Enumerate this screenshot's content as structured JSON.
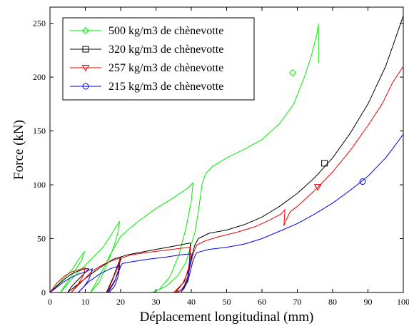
{
  "chart_data": {
    "type": "line",
    "title": "",
    "xlabel": "Déplacement longitudinal (mm)",
    "ylabel": "Force (kN)",
    "xlim": [
      0,
      100
    ],
    "ylim": [
      0,
      265
    ],
    "xticks": [
      0,
      10,
      20,
      30,
      40,
      50,
      60,
      70,
      80,
      90,
      100
    ],
    "yticks": [
      0,
      50,
      100,
      150,
      200,
      250
    ],
    "grid": false,
    "legend_position": "top-left",
    "series": [
      {
        "name": "500 kg/m3 de chènevotte",
        "color": "#00ee00",
        "marker": "diamond",
        "marker_point": [
          68.7,
          204
        ],
        "segments": [
          [
            [
              0,
              0
            ],
            [
              3,
              10
            ],
            [
              6,
              20
            ],
            [
              8,
              30
            ],
            [
              9.8,
              38
            ],
            [
              9,
              30
            ],
            [
              7,
              20
            ],
            [
              5,
              10
            ],
            [
              3.5,
              3
            ],
            [
              3,
              0
            ]
          ],
          [
            [
              3,
              0
            ],
            [
              6,
              12
            ],
            [
              9,
              22
            ],
            [
              12,
              32
            ],
            [
              15,
              42
            ],
            [
              17,
              52
            ],
            [
              18.5,
              60
            ],
            [
              19.7,
              66
            ],
            [
              19.2,
              55
            ],
            [
              18,
              42
            ],
            [
              16,
              25
            ],
            [
              14,
              10
            ],
            [
              12,
              2
            ],
            [
              11.5,
              0
            ]
          ],
          [
            [
              11.5,
              0
            ],
            [
              14,
              15
            ],
            [
              17,
              35
            ],
            [
              20,
              52
            ],
            [
              22,
              58
            ],
            [
              25,
              66
            ],
            [
              30,
              78
            ],
            [
              35,
              88
            ],
            [
              39,
              97
            ],
            [
              40.5,
              102
            ],
            [
              40,
              85
            ],
            [
              38.5,
              60
            ],
            [
              36.5,
              35
            ],
            [
              34,
              15
            ],
            [
              31,
              3
            ],
            [
              29,
              0
            ]
          ],
          [
            [
              29,
              0
            ],
            [
              33,
              6
            ],
            [
              36,
              15
            ],
            [
              38.5,
              28
            ],
            [
              40,
              45
            ],
            [
              41,
              55
            ],
            [
              42,
              75
            ],
            [
              43,
              100
            ],
            [
              44,
              110
            ],
            [
              46,
              117
            ],
            [
              50,
              125
            ],
            [
              55,
              133
            ],
            [
              60,
              142
            ],
            [
              65,
              157
            ],
            [
              69,
              175
            ],
            [
              72,
              200
            ],
            [
              74,
              220
            ],
            [
              75.6,
              241
            ],
            [
              76,
              249
            ],
            [
              76,
              213
            ]
          ]
        ]
      },
      {
        "name": "320 kg/m3 de chènevotte",
        "color": "#000000",
        "marker": "square",
        "marker_point": [
          77.7,
          120
        ],
        "segments": [
          [
            [
              0,
              0
            ],
            [
              2,
              6
            ],
            [
              4,
              12
            ],
            [
              6,
              17
            ],
            [
              8,
              20
            ],
            [
              10,
              22
            ],
            [
              11,
              22
            ],
            [
              8,
              12
            ],
            [
              6,
              5
            ],
            [
              5,
              0
            ]
          ],
          [
            [
              5,
              0
            ],
            [
              8,
              8
            ],
            [
              12,
              18
            ],
            [
              15,
              25
            ],
            [
              18,
              31
            ],
            [
              20,
              33
            ],
            [
              19.5,
              22
            ],
            [
              18.5,
              12
            ],
            [
              17,
              4
            ],
            [
              16,
              0
            ]
          ],
          [
            [
              16,
              0
            ],
            [
              18,
              15
            ],
            [
              19.5,
              28
            ],
            [
              20,
              33
            ],
            [
              22,
              35
            ],
            [
              25,
              37
            ],
            [
              30,
              40
            ],
            [
              35,
              43
            ],
            [
              39.7,
              46
            ],
            [
              39.5,
              30
            ],
            [
              39,
              15
            ],
            [
              38,
              6
            ],
            [
              37,
              2
            ],
            [
              35.5,
              0
            ]
          ],
          [
            [
              35.5,
              0
            ],
            [
              38,
              10
            ],
            [
              39.5,
              25
            ],
            [
              40.5,
              38
            ],
            [
              41,
              44
            ],
            [
              42,
              50
            ],
            [
              45,
              55
            ],
            [
              50,
              58
            ],
            [
              55,
              63
            ],
            [
              60,
              70
            ],
            [
              65,
              80
            ],
            [
              70,
              92
            ],
            [
              75,
              107
            ],
            [
              80,
              125
            ],
            [
              85,
              148
            ],
            [
              90,
              175
            ],
            [
              95,
              210
            ],
            [
              98,
              238
            ],
            [
              100,
              257
            ]
          ]
        ]
      },
      {
        "name": "257 kg/m3 de chènevotte",
        "color": "#ee0000",
        "marker": "triangle-down",
        "marker_point": [
          75.8,
          98
        ],
        "segments": [
          [
            [
              0,
              0
            ],
            [
              2,
              9
            ],
            [
              4,
              15
            ],
            [
              6,
              19
            ],
            [
              8,
              21
            ],
            [
              10,
              23
            ],
            [
              9.5,
              16
            ],
            [
              8,
              8
            ],
            [
              6.5,
              2
            ],
            [
              6,
              0
            ]
          ],
          [
            [
              6,
              0
            ],
            [
              9,
              10
            ],
            [
              12,
              20
            ],
            [
              15,
              26
            ],
            [
              18,
              30
            ],
            [
              19.8,
              32
            ],
            [
              19.3,
              20
            ],
            [
              18.3,
              10
            ],
            [
              17,
              3
            ],
            [
              16.2,
              0
            ]
          ],
          [
            [
              16.2,
              0
            ],
            [
              18,
              14
            ],
            [
              19.5,
              26
            ],
            [
              20.3,
              32
            ],
            [
              23,
              35
            ],
            [
              27,
              37
            ],
            [
              32,
              39
            ],
            [
              37,
              41
            ],
            [
              39.8,
              42
            ],
            [
              39.5,
              28
            ],
            [
              39,
              14
            ],
            [
              38,
              5
            ],
            [
              36.5,
              1
            ],
            [
              35,
              0
            ]
          ],
          [
            [
              35,
              0
            ],
            [
              37.5,
              8
            ],
            [
              39.5,
              22
            ],
            [
              40.5,
              36
            ],
            [
              41.5,
              44
            ],
            [
              44,
              48
            ],
            [
              48,
              52
            ],
            [
              53,
              56
            ],
            [
              58,
              61
            ],
            [
              62,
              67
            ],
            [
              65.5,
              73
            ],
            [
              66.5,
              77
            ],
            [
              66.2,
              62
            ],
            [
              66.8,
              67
            ],
            [
              68,
              75
            ],
            [
              70,
              80
            ],
            [
              75,
              95
            ],
            [
              80,
              112
            ],
            [
              85,
              132
            ],
            [
              90,
              155
            ],
            [
              94,
              175
            ],
            [
              97,
              195
            ],
            [
              99,
              205
            ],
            [
              100,
              210
            ]
          ]
        ]
      },
      {
        "name": "215 kg/m3 de chènevotte",
        "color": "#0000ee",
        "marker": "circle",
        "marker_point": [
          88.5,
          103
        ],
        "segments": [
          [
            [
              0,
              0
            ],
            [
              2,
              5
            ],
            [
              4,
              10
            ],
            [
              6,
              14
            ],
            [
              8,
              17
            ],
            [
              10,
              19
            ],
            [
              12,
              22
            ],
            [
              11,
              12
            ],
            [
              9.5,
              5
            ],
            [
              8,
              0
            ]
          ],
          [
            [
              8,
              0
            ],
            [
              11,
              10
            ],
            [
              14,
              17
            ],
            [
              17,
              22
            ],
            [
              19.8,
              25
            ],
            [
              19.3,
              15
            ],
            [
              18.3,
              6
            ],
            [
              17,
              1
            ],
            [
              16.5,
              0
            ]
          ],
          [
            [
              16.5,
              0
            ],
            [
              18.5,
              12
            ],
            [
              20,
              24
            ],
            [
              20.5,
              27
            ],
            [
              24,
              29
            ],
            [
              28,
              31
            ],
            [
              33,
              33
            ],
            [
              37,
              35
            ],
            [
              40,
              36
            ],
            [
              39.6,
              24
            ],
            [
              39,
              12
            ],
            [
              38,
              4
            ],
            [
              37,
              0
            ]
          ],
          [
            [
              37,
              0
            ],
            [
              39,
              10
            ],
            [
              40.5,
              30
            ],
            [
              41.5,
              37
            ],
            [
              45,
              40
            ],
            [
              50,
              42
            ],
            [
              55,
              45
            ],
            [
              60,
              50
            ],
            [
              65,
              57
            ],
            [
              70,
              64
            ],
            [
              75,
              73
            ],
            [
              80,
              83
            ],
            [
              85,
              95
            ],
            [
              90,
              108
            ],
            [
              95,
              125
            ],
            [
              98,
              138
            ],
            [
              100,
              147
            ]
          ]
        ]
      }
    ]
  }
}
